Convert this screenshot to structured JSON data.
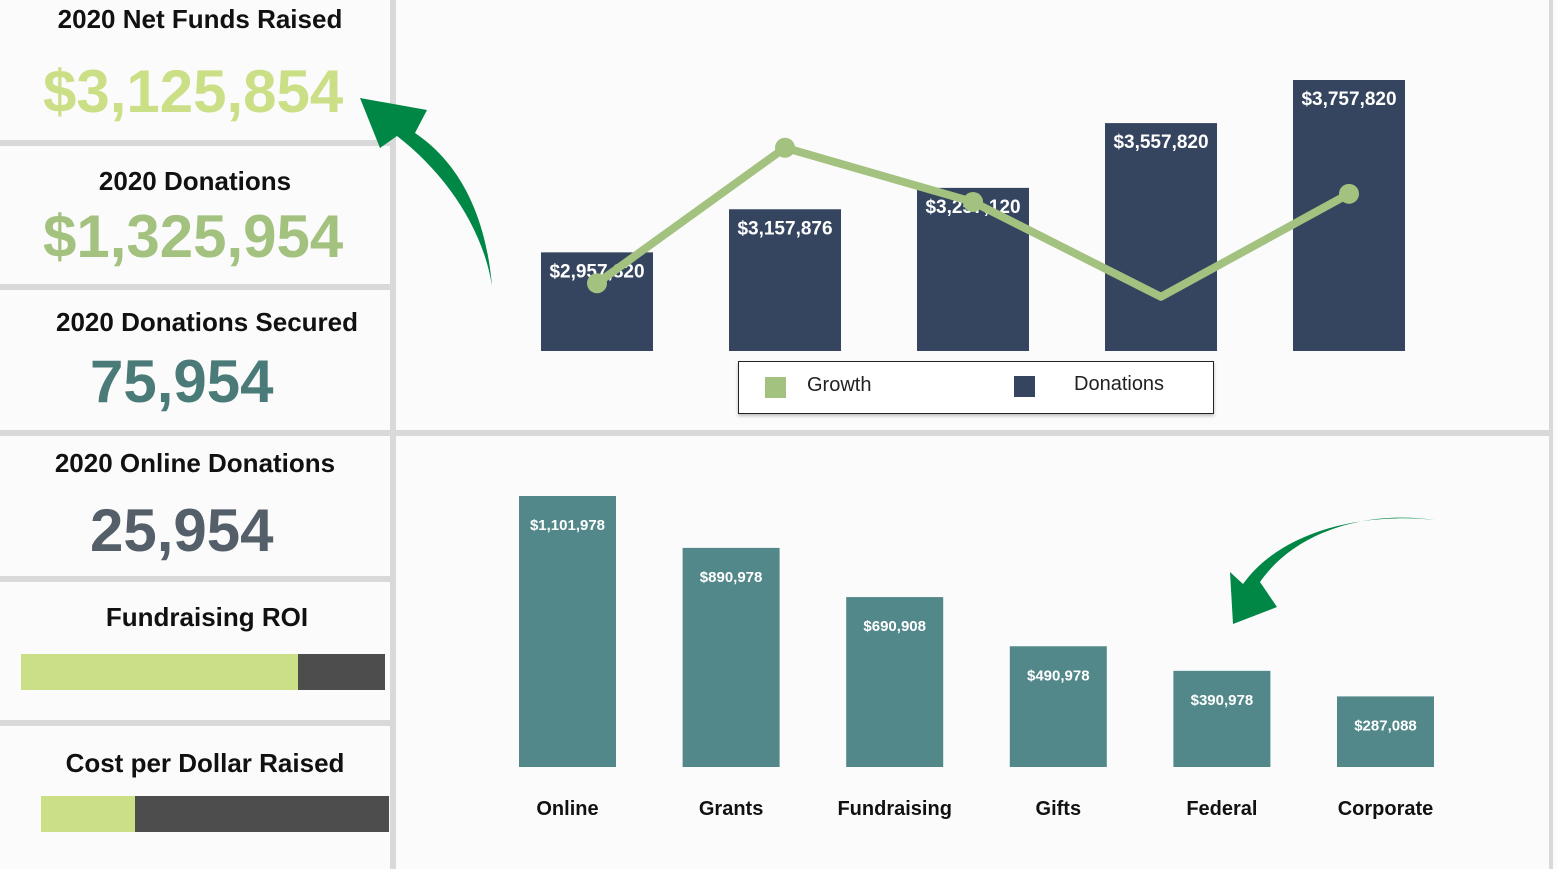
{
  "kpis": {
    "net_funds": {
      "title": "2020 Net Funds Raised",
      "value": "$3,125,854",
      "color": "#cadf86"
    },
    "donations": {
      "title": "2020 Donations",
      "value": "$1,325,954",
      "color": "#a3c17f"
    },
    "secured": {
      "title": "2020 Donations Secured",
      "value": "75,954",
      "color": "#4a7b78"
    },
    "online": {
      "title": "2020 Online Donations",
      "value": "25,954",
      "color": "#545f69"
    },
    "roi": {
      "title": "Fundraising ROI",
      "level": 0.76
    },
    "cost": {
      "title": "Cost per Dollar Raised",
      "level": 0.27
    }
  },
  "colors": {
    "growth": "#a3c17f",
    "donations_bar": "#35455f",
    "category_bar": "#52888a",
    "arrow": "#008746",
    "divider": "#d9d9d9"
  },
  "chart_data": [
    {
      "type": "bar",
      "categories": [
        "",
        "",
        "",
        "",
        ""
      ],
      "series": [
        {
          "name": "Donations",
          "values": [
            2957820,
            3157876,
            3257120,
            3557820,
            3757820
          ],
          "labels": [
            "$2,957,820",
            "$3,157,876",
            "$3,257,120",
            "$3,557,820",
            "$3,757,820"
          ]
        },
        {
          "name": "Growth",
          "type": "line",
          "values": [
            0.25,
            0.75,
            0.55,
            0.2,
            0.58
          ]
        }
      ],
      "legend": "bottom-center",
      "grid": false
    },
    {
      "type": "bar",
      "categories": [
        "Online",
        "Grants",
        "Fundraising",
        "Gifts",
        "Federal",
        "Corporate"
      ],
      "values": [
        1101978,
        890978,
        690908,
        490978,
        390978,
        287088
      ],
      "labels": [
        "$1,101,978",
        "$890,978",
        "$690,908",
        "$490,978",
        "$390,978",
        "$287,088"
      ],
      "ylim": [
        0,
        1101978
      ],
      "grid": false
    }
  ]
}
